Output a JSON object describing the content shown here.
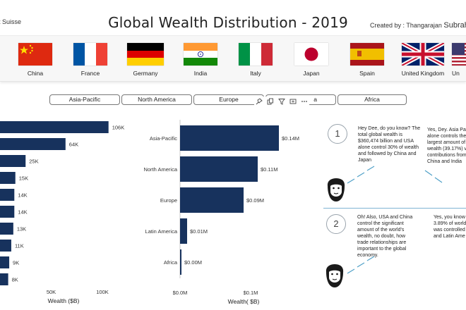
{
  "header": {
    "source": "t Suisse",
    "title": "Global Wealth Distribution - 2019",
    "credit_prefix": "Created by : Thangarajan",
    "credit_name": "Subrahmanian"
  },
  "flags": [
    {
      "name": "China",
      "icon": "china-flag-icon"
    },
    {
      "name": "France",
      "icon": "france-flag-icon"
    },
    {
      "name": "Germany",
      "icon": "germany-flag-icon"
    },
    {
      "name": "India",
      "icon": "india-flag-icon"
    },
    {
      "name": "Italy",
      "icon": "italy-flag-icon"
    },
    {
      "name": "Japan",
      "icon": "japan-flag-icon"
    },
    {
      "name": "Spain",
      "icon": "spain-flag-icon"
    },
    {
      "name": "United Kingdom",
      "icon": "uk-flag-icon"
    },
    {
      "name": "Un",
      "icon": "usa-flag-icon"
    }
  ],
  "region_buttons": [
    "Asia-Pacific",
    "North America",
    "Europe",
    "a",
    "Africa"
  ],
  "toolbar_icons": [
    "pin-icon",
    "copy-icon",
    "filter-icon",
    "expand-icon",
    "more-options-icon"
  ],
  "chart_data": [
    {
      "type": "bar",
      "orientation": "horizontal",
      "values": [
        106,
        64,
        25,
        15,
        14,
        14,
        13,
        11,
        9,
        8
      ],
      "data_labels": [
        "106K",
        "64K",
        "25K",
        "15K",
        "14K",
        "14K",
        "13K",
        "11K",
        "9K",
        "8K"
      ],
      "xlabel": "Wealth ($B)",
      "x_ticks": [
        "50K",
        "100K"
      ],
      "color": "#17325d"
    },
    {
      "type": "bar",
      "orientation": "horizontal",
      "categories": [
        "Asia-Pacific",
        "North America",
        "Europe",
        "Latin America",
        "Africa"
      ],
      "values": [
        0.14,
        0.11,
        0.09,
        0.01,
        0.0
      ],
      "data_labels": [
        "$0.14M",
        "$0.11M",
        "$0.09M",
        "$0.01M",
        "$0.00M"
      ],
      "xlabel": "Wealth( $B)",
      "x_ticks": [
        "$0.0M",
        "$0.1M"
      ],
      "color": "#17325d"
    }
  ],
  "comic": {
    "panel1": {
      "number": "1",
      "left_text": "Hey Dee, do you know? The total global wealth is $360,474 billion and USA alone control 30% of wealth and followed by China and Japan",
      "right_text": "Yes, Dey. Asia Paci alone controls the largest amount of wealth (39.17%) v contributions from China and India"
    },
    "panel2": {
      "number": "2",
      "left_text": "Oh! Also, USA and China control the significant amount of the world's wealth, no doubt, how trade relationships are important to the global economy.",
      "right_text": "Yes, you know 3.89% of world was controlled and Latin Ame"
    }
  }
}
